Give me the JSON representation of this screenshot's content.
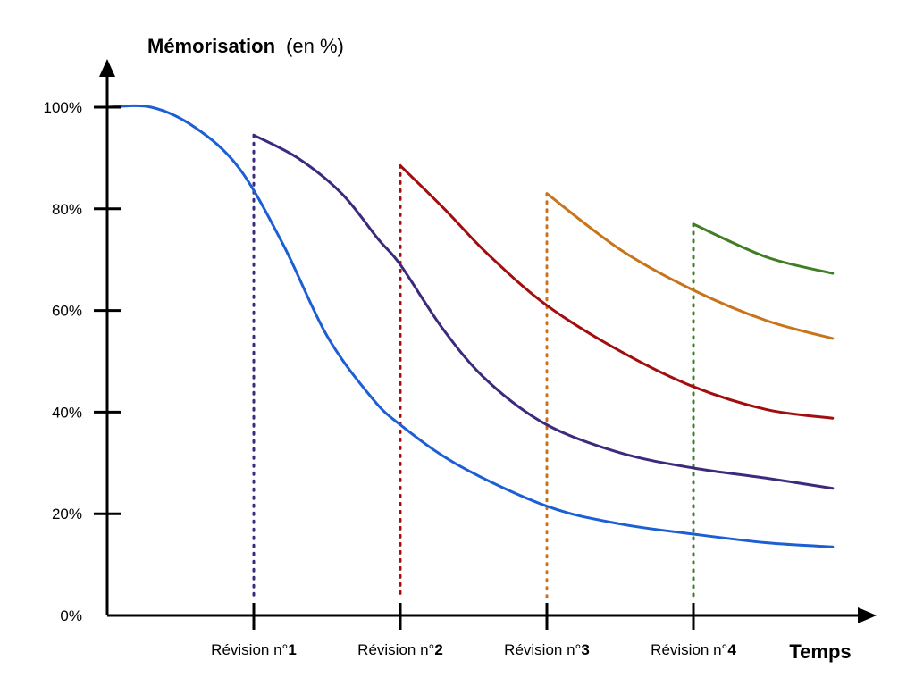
{
  "chart_data": {
    "type": "line",
    "ylabel_bold": "Mémorisation",
    "ylabel_rest": "(en %)",
    "xlabel": "Temps",
    "ylim": [
      0,
      100
    ],
    "yticks": [
      "0%",
      "20%",
      "40%",
      "60%",
      "80%",
      "100%"
    ],
    "ytick_values": [
      0,
      20,
      40,
      60,
      80,
      100
    ],
    "xlim": [
      0,
      5
    ],
    "revisions": [
      {
        "label": "Révision n°",
        "num": "1",
        "x": 1,
        "color": "#3d2a7d"
      },
      {
        "label": "Révision n°",
        "num": "2",
        "x": 2,
        "color": "#a30d0d"
      },
      {
        "label": "Révision n°",
        "num": "3",
        "x": 3,
        "color": "#c8741b"
      },
      {
        "label": "Révision n°",
        "num": "4",
        "x": 4,
        "color": "#3f7e24"
      }
    ],
    "series": [
      {
        "color": "#1c5fd4",
        "points": [
          [
            0,
            100
          ],
          [
            0.3,
            100
          ],
          [
            0.6,
            96
          ],
          [
            0.9,
            88
          ],
          [
            1.2,
            73
          ],
          [
            1.5,
            55
          ],
          [
            1.8,
            43
          ],
          [
            2.0,
            37.5
          ],
          [
            2.4,
            29.5
          ],
          [
            3.0,
            21.5
          ],
          [
            3.5,
            18
          ],
          [
            4.0,
            16
          ],
          [
            4.5,
            14.3
          ],
          [
            4.95,
            13.5
          ]
        ]
      },
      {
        "color": "#3d2a7d",
        "points": [
          [
            1.0,
            94.5
          ],
          [
            1.3,
            90
          ],
          [
            1.6,
            83
          ],
          [
            1.85,
            74
          ],
          [
            2.0,
            69
          ],
          [
            2.3,
            56
          ],
          [
            2.6,
            46
          ],
          [
            3.0,
            37.5
          ],
          [
            3.5,
            32
          ],
          [
            4.0,
            29
          ],
          [
            4.5,
            27
          ],
          [
            4.95,
            25
          ]
        ]
      },
      {
        "color": "#a30d0d",
        "points": [
          [
            2.0,
            88.5
          ],
          [
            2.3,
            80
          ],
          [
            2.6,
            71
          ],
          [
            3.0,
            61
          ],
          [
            3.5,
            52
          ],
          [
            4.0,
            45
          ],
          [
            4.5,
            40.5
          ],
          [
            4.95,
            38.8
          ]
        ]
      },
      {
        "color": "#c8741b",
        "points": [
          [
            3.0,
            83
          ],
          [
            3.5,
            72
          ],
          [
            4.0,
            64
          ],
          [
            4.5,
            58
          ],
          [
            4.95,
            54.5
          ]
        ]
      },
      {
        "color": "#3f7e24",
        "points": [
          [
            4.0,
            77
          ],
          [
            4.5,
            70.5
          ],
          [
            4.95,
            67.3
          ]
        ]
      }
    ]
  }
}
